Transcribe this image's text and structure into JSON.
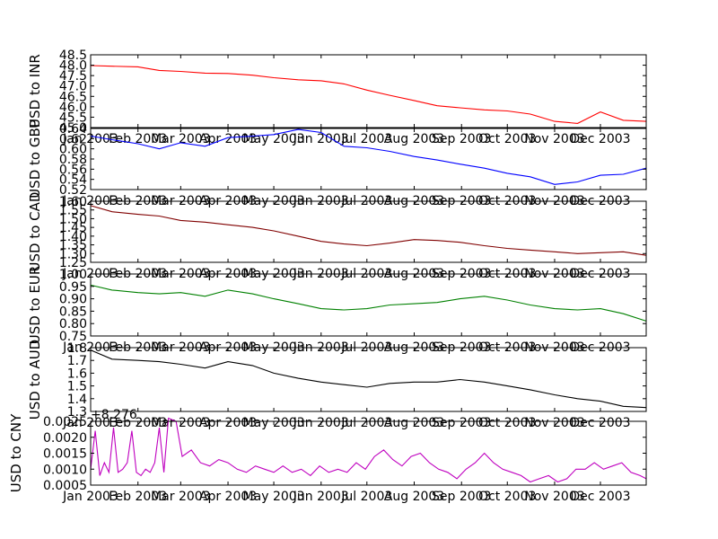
{
  "chart_data": [
    {
      "type": "line",
      "ylabel": "USD to INR",
      "color": "#ff0000",
      "ylim": [
        45.0,
        48.5
      ],
      "yticks": [
        "48.5",
        "48.0",
        "47.5",
        "47.0",
        "46.5",
        "46.0",
        "45.5",
        "45.0"
      ],
      "xticks": [
        "Jan 2003",
        "Feb 2003",
        "Mar 2003",
        "Apr 2003",
        "May 2003",
        "Jun 2003",
        "Jul 2003",
        "Aug 2003",
        "Sep 2003",
        "Oct 2003",
        "Nov 2003",
        "Dec 2003"
      ],
      "offset_label": "",
      "x": [
        0,
        14,
        31,
        45,
        59,
        75,
        90,
        106,
        120,
        136,
        151,
        166,
        181,
        196,
        212,
        227,
        242,
        258,
        273,
        288,
        304,
        319,
        334,
        349,
        364
      ],
      "y": [
        47.98,
        47.95,
        47.92,
        47.75,
        47.7,
        47.62,
        47.6,
        47.52,
        47.4,
        47.3,
        47.25,
        47.1,
        46.8,
        46.55,
        46.3,
        46.05,
        45.95,
        45.85,
        45.8,
        45.65,
        45.3,
        45.2,
        45.75,
        45.35,
        45.3
      ]
    },
    {
      "type": "line",
      "ylabel": "USD to GBP",
      "color": "#0000ff",
      "ylim": [
        0.52,
        0.64
      ],
      "yticks": [
        "0.64",
        "0.62",
        "0.60",
        "0.58",
        "0.56",
        "0.54",
        "0.52"
      ],
      "xticks": [
        "Jan 2003",
        "Feb 2003",
        "Mar 2003",
        "Apr 2003",
        "May 2003",
        "Jun 2003",
        "Jul 2003",
        "Aug 2003",
        "Sep 2003",
        "Oct 2003",
        "Nov 2003",
        "Dec 2003"
      ],
      "offset_label": "",
      "x": [
        0,
        14,
        31,
        45,
        59,
        75,
        90,
        106,
        120,
        136,
        151,
        166,
        181,
        196,
        212,
        227,
        242,
        258,
        273,
        288,
        304,
        319,
        334,
        349,
        364
      ],
      "y": [
        0.625,
        0.618,
        0.61,
        0.6,
        0.612,
        0.605,
        0.622,
        0.625,
        0.628,
        0.638,
        0.632,
        0.605,
        0.602,
        0.595,
        0.585,
        0.578,
        0.57,
        0.562,
        0.552,
        0.545,
        0.53,
        0.535,
        0.548,
        0.55,
        0.562
      ]
    },
    {
      "type": "line",
      "ylabel": "USD to CAD",
      "color": "#800000",
      "ylim": [
        1.25,
        1.6
      ],
      "yticks": [
        "1.60",
        "1.55",
        "1.50",
        "1.45",
        "1.40",
        "1.35",
        "1.30",
        "1.25"
      ],
      "xticks": [
        "Jan 2003",
        "Feb 2003",
        "Mar 2003",
        "Apr 2003",
        "May 2003",
        "Jun 2003",
        "Jul 2003",
        "Aug 2003",
        "Sep 2003",
        "Oct 2003",
        "Nov 2003",
        "Dec 2003"
      ],
      "offset_label": "",
      "x": [
        0,
        14,
        31,
        45,
        59,
        75,
        90,
        106,
        120,
        136,
        151,
        166,
        181,
        196,
        212,
        227,
        242,
        258,
        273,
        288,
        304,
        319,
        334,
        349,
        364
      ],
      "y": [
        1.575,
        1.54,
        1.525,
        1.515,
        1.49,
        1.48,
        1.465,
        1.45,
        1.43,
        1.4,
        1.37,
        1.355,
        1.345,
        1.36,
        1.38,
        1.375,
        1.365,
        1.345,
        1.33,
        1.32,
        1.31,
        1.3,
        1.305,
        1.31,
        1.29
      ]
    },
    {
      "type": "line",
      "ylabel": "USD to EUR",
      "color": "#008000",
      "ylim": [
        0.75,
        1.0
      ],
      "yticks": [
        "1.00",
        "0.95",
        "0.90",
        "0.85",
        "0.80",
        "0.75"
      ],
      "xticks": [
        "Jan 2003",
        "Feb 2003",
        "Mar 2003",
        "Apr 2003",
        "May 2003",
        "Jun 2003",
        "Jul 2003",
        "Aug 2003",
        "Sep 2003",
        "Oct 2003",
        "Nov 2003",
        "Dec 2003"
      ],
      "offset_label": "",
      "x": [
        0,
        14,
        31,
        45,
        59,
        75,
        90,
        106,
        120,
        136,
        151,
        166,
        181,
        196,
        212,
        227,
        242,
        258,
        273,
        288,
        304,
        319,
        334,
        349,
        364
      ],
      "y": [
        0.955,
        0.935,
        0.925,
        0.92,
        0.925,
        0.91,
        0.935,
        0.92,
        0.9,
        0.88,
        0.86,
        0.855,
        0.86,
        0.875,
        0.88,
        0.885,
        0.9,
        0.91,
        0.895,
        0.875,
        0.86,
        0.855,
        0.86,
        0.84,
        0.81
      ]
    },
    {
      "type": "line",
      "ylabel": "USD to AUD",
      "color": "#000000",
      "ylim": [
        1.3,
        1.8
      ],
      "yticks": [
        "1.8",
        "1.7",
        "1.6",
        "1.5",
        "1.4",
        "1.3"
      ],
      "xticks": [
        "Jan 2003",
        "Feb 2003",
        "Mar 2003",
        "Apr 2003",
        "May 2003",
        "Jun 2003",
        "Jul 2003",
        "Aug 2003",
        "Sep 2003",
        "Oct 2003",
        "Nov 2003",
        "Dec 2003"
      ],
      "offset_label": "",
      "x": [
        0,
        14,
        31,
        45,
        59,
        75,
        90,
        106,
        120,
        136,
        151,
        166,
        181,
        196,
        212,
        227,
        242,
        258,
        273,
        288,
        304,
        319,
        334,
        349,
        364
      ],
      "y": [
        1.78,
        1.71,
        1.7,
        1.69,
        1.67,
        1.64,
        1.69,
        1.66,
        1.6,
        1.56,
        1.53,
        1.51,
        1.49,
        1.52,
        1.53,
        1.53,
        1.55,
        1.53,
        1.5,
        1.47,
        1.43,
        1.4,
        1.38,
        1.34,
        1.33
      ]
    },
    {
      "type": "line",
      "ylabel": "USD to CNY",
      "color": "#bf00bf",
      "ylim": [
        0.0005,
        0.0025
      ],
      "yticks": [
        "0.0025",
        "0.0020",
        "0.0015",
        "0.0010",
        "0.0005"
      ],
      "xticks": [
        "Jan 2003",
        "Feb 2003",
        "Mar 2003",
        "Apr 2003",
        "May 2003",
        "Jun 2003",
        "Jul 2003",
        "Aug 2003",
        "Sep 2003",
        "Oct 2003",
        "Nov 2003",
        "Dec 2003"
      ],
      "offset_label": "+8.276",
      "x": [
        0,
        3,
        6,
        9,
        12,
        15,
        18,
        21,
        24,
        27,
        30,
        33,
        36,
        39,
        42,
        45,
        48,
        51,
        56,
        60,
        66,
        72,
        78,
        84,
        90,
        96,
        102,
        108,
        114,
        120,
        126,
        132,
        138,
        144,
        150,
        156,
        162,
        168,
        174,
        180,
        186,
        192,
        198,
        204,
        210,
        216,
        222,
        228,
        234,
        240,
        246,
        252,
        258,
        264,
        270,
        276,
        282,
        288,
        294,
        300,
        306,
        312,
        318,
        324,
        330,
        336,
        342,
        348,
        354,
        360,
        364
      ],
      "y": [
        0.001,
        0.0022,
        0.0008,
        0.0012,
        0.0009,
        0.0023,
        0.0009,
        0.001,
        0.0012,
        0.0022,
        0.0009,
        0.0008,
        0.001,
        0.0009,
        0.0012,
        0.0023,
        0.0009,
        0.0026,
        0.0025,
        0.0014,
        0.0016,
        0.0012,
        0.0011,
        0.0013,
        0.0012,
        0.001,
        0.0009,
        0.0011,
        0.001,
        0.0009,
        0.0011,
        0.0009,
        0.001,
        0.0008,
        0.0011,
        0.0009,
        0.001,
        0.0009,
        0.0012,
        0.001,
        0.0014,
        0.0016,
        0.0013,
        0.0011,
        0.0014,
        0.0015,
        0.0012,
        0.001,
        0.0009,
        0.0007,
        0.001,
        0.0012,
        0.0015,
        0.0012,
        0.001,
        0.0009,
        0.0008,
        0.0006,
        0.0007,
        0.0008,
        0.0006,
        0.0007,
        0.001,
        0.001,
        0.0012,
        0.001,
        0.0011,
        0.0012,
        0.0009,
        0.0008,
        0.0007
      ]
    }
  ]
}
